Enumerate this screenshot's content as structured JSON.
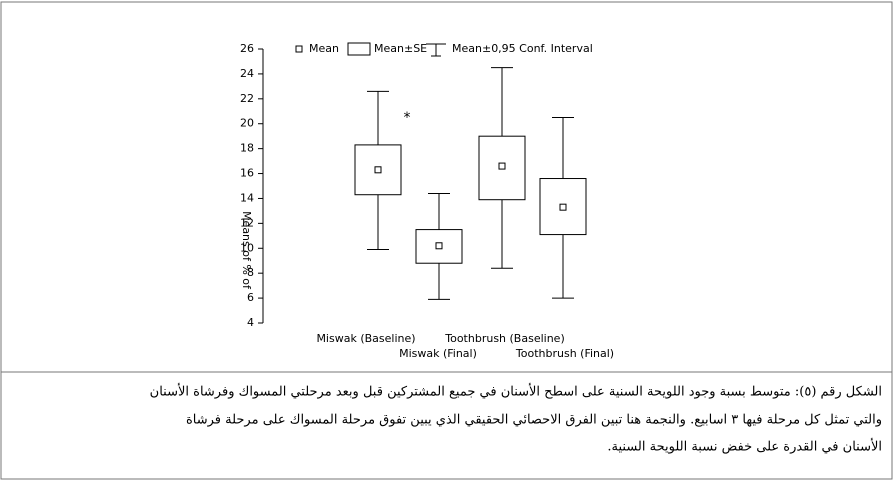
{
  "chart_data": {
    "type": "box",
    "categories": [
      "Miswak (Baseline)",
      "Miswak (Final)",
      "Toothbrush (Baseline)",
      "Toothbrush (Final)"
    ],
    "mean": [
      16.3,
      10.2,
      16.6,
      13.3
    ],
    "se_low": [
      14.3,
      8.8,
      13.9,
      11.1
    ],
    "se_high": [
      18.3,
      11.5,
      19.0,
      15.6
    ],
    "ci_low": [
      9.9,
      5.9,
      8.4,
      6.0
    ],
    "ci_high": [
      22.6,
      14.4,
      24.5,
      20.5
    ],
    "legend": [
      "Mean",
      "Mean±SE",
      "Mean±0,95 Conf. Interval"
    ],
    "ylabel": "Means of % of",
    "annotation": "*",
    "color": "#000000",
    "ylim": [
      4,
      26
    ],
    "yticks": [
      4,
      6,
      8,
      10,
      12,
      14,
      16,
      18,
      20,
      22,
      24,
      26
    ]
  },
  "caption": [
    "الشكل رقم (٥): متوسط بسبة وجود اللويحة السنية على اسطح الأسنان في جميع المشتركين قبل وبعد مرحلتي المسواك وفرشاة الأسنان",
    "والتي تمثل كل مرحلة فيها ٣ اسابيع. والنجمة هنا تبين الفرق الاحصائي الحقيقي الذي يبين تفوق مرحلة المسواك على مرحلة فرشاة",
    "الأسنان في القدرة على خفض نسبة اللويحة السنية."
  ]
}
